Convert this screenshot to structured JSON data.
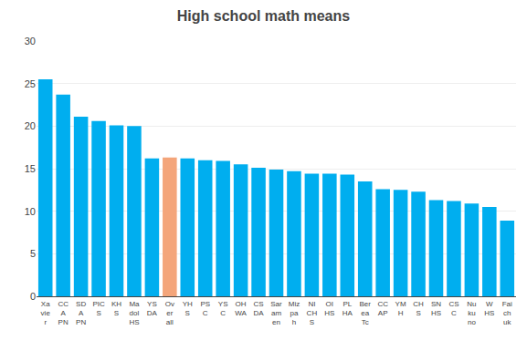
{
  "chart_data": {
    "type": "bar",
    "title": "High school math means",
    "categories": [
      "Xa\nvie\nr",
      "CC\nA\nPN",
      "SD\nA\nPN",
      "PIC\nS",
      "KH\nS",
      "Ma\ndol\nHS",
      "YS\nDA",
      "Ov\ner\nall",
      "YH\nS",
      "PS\nC",
      "YS\nC",
      "OH\nWA",
      "CS\nDA",
      "Sar\nam\nen",
      "Miz\npa\nh",
      "NI\nCH\nS",
      "OI\nHS",
      "PL\nHA",
      "Ber\nea\nTc",
      "CC\nAP",
      "YM\nH",
      "CH\nS",
      "SN\nHS",
      "CS\nC",
      "Nu\nku\nno",
      "W\nHS",
      "Fai\nch\nuk"
    ],
    "values": [
      25.5,
      23.7,
      21.1,
      20.6,
      20.1,
      20.0,
      16.2,
      16.3,
      16.2,
      16.0,
      15.9,
      15.5,
      15.1,
      14.9,
      14.7,
      14.4,
      14.4,
      14.3,
      13.5,
      12.6,
      12.5,
      12.3,
      11.3,
      11.2,
      10.9,
      10.5,
      8.9
    ],
    "colors": [
      "#00AEEF",
      "#00AEEF",
      "#00AEEF",
      "#00AEEF",
      "#00AEEF",
      "#00AEEF",
      "#00AEEF",
      "#F4A57A",
      "#00AEEF",
      "#00AEEF",
      "#00AEEF",
      "#00AEEF",
      "#00AEEF",
      "#00AEEF",
      "#00AEEF",
      "#00AEEF",
      "#00AEEF",
      "#00AEEF",
      "#00AEEF",
      "#00AEEF",
      "#00AEEF",
      "#00AEEF",
      "#00AEEF",
      "#00AEEF",
      "#00AEEF",
      "#00AEEF",
      "#00AEEF"
    ],
    "ylim": [
      0,
      30
    ],
    "yticks": [
      0,
      5,
      10,
      15,
      20,
      25,
      30
    ],
    "grid": true
  }
}
